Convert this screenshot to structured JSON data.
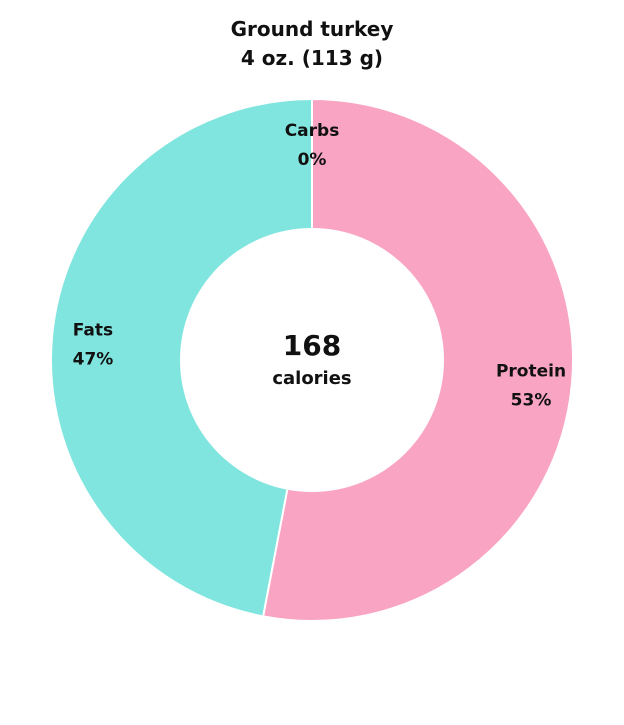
{
  "chart_data": {
    "type": "pie",
    "donut": true,
    "title": "Ground turkey",
    "subtitle": "4 oz. (113 g)",
    "center_value": "168",
    "center_label": "calories",
    "slices": [
      {
        "label": "Protein",
        "value": 53,
        "value_label": "53%",
        "color": "#f9a4c2"
      },
      {
        "label": "Fats",
        "value": 47,
        "value_label": "47%",
        "color": "#80e5de"
      },
      {
        "label": "Carbs",
        "value": 0,
        "value_label": "0%",
        "color": "#f2d27a"
      }
    ]
  }
}
